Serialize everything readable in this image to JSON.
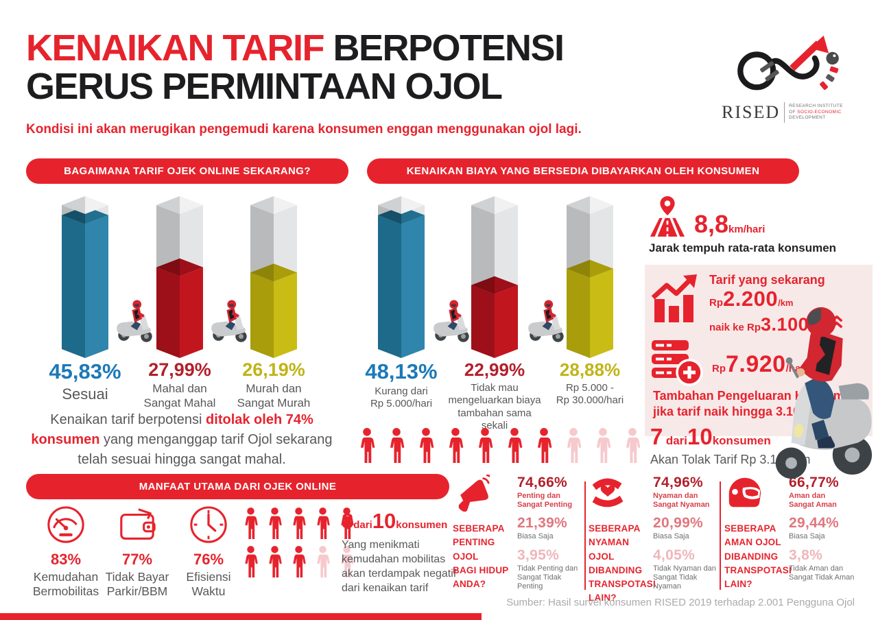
{
  "header": {
    "title_red": "KENAIKAN TARIF ",
    "title_black": "BERPOTENSI",
    "title_line2": "GERUS PERMINTAAN OJOL",
    "subtitle": "Kondisi ini akan merugikan pengemudi karena konsumen enggan menggunakan ojol lagi.",
    "logo": {
      "name": "RISED",
      "tagline_line1": "RESEARCH INSTITUTE",
      "tagline_line2_prefix": "OF ",
      "tagline_line2_red": "SOCIO-ECONOMIC",
      "tagline_line3": "DEVELOPMENT"
    }
  },
  "colors": {
    "accent_red": "#e6232d",
    "dark_red": "#b2202b",
    "blue": "#1b79b8",
    "yellow": "#c0b418",
    "text_gray": "#58585a",
    "light_pink": "#f6c9cd",
    "panel_pink": "#f8e9e9"
  },
  "chart_data": [
    {
      "id": "current-tariff-opinion",
      "type": "bar",
      "title": "BAGAIMANA TARIF OJEK ONLINE SEKARANG?",
      "unit": "%",
      "series": [
        {
          "value": 45.83,
          "value_label": "45,83%",
          "label_lines": [
            "Sesuai"
          ],
          "color": "#1b79b8",
          "color_name": "blue"
        },
        {
          "value": 27.99,
          "value_label": "27,99%",
          "label_lines": [
            "Mahal dan",
            "Sangat Mahal"
          ],
          "color": "#b2202b",
          "color_name": "red"
        },
        {
          "value": 26.19,
          "value_label": "26,19%",
          "label_lines": [
            "Murah dan",
            "Sangat Murah"
          ],
          "color": "#c0b418",
          "color_name": "yellow"
        }
      ]
    },
    {
      "id": "willingness-to-pay",
      "type": "bar",
      "title": "KENAIKAN BIAYA YANG BERSEDIA DIBAYARKAN OLEH KONSUMEN",
      "unit": "%",
      "series": [
        {
          "value": 48.13,
          "value_label": "48,13%",
          "label_lines": [
            "Kurang dari",
            "Rp 5.000/hari"
          ],
          "color": "#1b79b8",
          "color_name": "blue"
        },
        {
          "value": 22.99,
          "value_label": "22,99%",
          "label_lines": [
            "Tidak mau",
            "mengeluarkan biaya",
            "tambahan sama sekali"
          ],
          "color": "#b2202b",
          "color_name": "red"
        },
        {
          "value": 28.88,
          "value_label": "28,88%",
          "label_lines": [
            "Rp 5.000 -",
            "Rp 30.000/hari"
          ],
          "color": "#c0b418",
          "color_name": "yellow"
        }
      ]
    }
  ],
  "rejection_note": {
    "prefix": "Kenaikan tarif berpotensi ",
    "highlight": "ditolak oleh 74% konsumen",
    "suffix": " yang menganggap tarif Ojol sekarang telah sesuai hingga sangat mahal."
  },
  "stats_panel": {
    "distance": {
      "value": "8,8",
      "unit": "km/hari",
      "caption": "Jarak tempuh rata-rata konsumen"
    },
    "tariff": {
      "heading": "Tarif yang sekarang",
      "current_prefix": "Rp",
      "current_value": "2.200",
      "current_unit": "/km",
      "raise_prefix": "naik ke Rp",
      "raise_value": "3.100",
      "raise_unit": "/km"
    },
    "extra_spend": {
      "prefix": "Rp",
      "value": "7.920",
      "unit": "/hari",
      "caption_lines": [
        "Tambahan Pengeluaran Konsumen",
        "jika tarif naik hingga 3.100/ km"
      ]
    },
    "rejection": {
      "big1": "7",
      "word1": "dari",
      "big2": "10",
      "word2": "konsumen",
      "caption": "Akan Tolak Tarif Rp 3.100/km",
      "icons": {
        "total": 10,
        "active": 7
      }
    }
  },
  "benefits": {
    "title": "MANFAAT UTAMA DARI OJEK ONLINE",
    "items": [
      {
        "icon": "speedometer",
        "value": "83%",
        "label_lines": [
          "Kemudahan",
          "Bermobilitas"
        ]
      },
      {
        "icon": "wallet",
        "value": "77%",
        "label_lines": [
          "Tidak Bayar",
          "Parkir/BBM"
        ]
      },
      {
        "icon": "clock",
        "value": "76%",
        "label_lines": [
          "Efisiensi",
          "Waktu"
        ]
      }
    ],
    "impact": {
      "big1": "8",
      "word1": "dari",
      "big2": "10",
      "word2": "konsumen",
      "desc_lines": [
        "Yang menikmati",
        "kemudahan mobilitas",
        "akan terdampak negatif",
        "dari kenaikan tarif"
      ],
      "icons": {
        "total": 10,
        "active": 8
      }
    }
  },
  "surveys": [
    {
      "icon": "megaphone",
      "question_lines": [
        "SEBERAPA",
        "PENTING OJOL",
        "BAGI HIDUP",
        "ANDA?"
      ],
      "stats": [
        {
          "value": "74,66%",
          "label_lines": [
            "Penting dan",
            "Sangat Penting"
          ],
          "tone": "dark"
        },
        {
          "value": "21,39%",
          "label_lines": [
            "Biasa Saja"
          ],
          "tone": "mid"
        },
        {
          "value": "3,95%",
          "label_lines": [
            "Tidak Penting dan",
            "Sangat Tidak Penting"
          ],
          "tone": "light"
        }
      ]
    },
    {
      "icon": "care-hands",
      "question_lines": [
        "SEBERAPA",
        "NYAMAN OJOL",
        "DIBANDING",
        "TRANSPOTASI",
        "LAIN?"
      ],
      "stats": [
        {
          "value": "74,96%",
          "label_lines": [
            "Nyaman dan",
            "Sangat Nyaman"
          ],
          "tone": "dark"
        },
        {
          "value": "20,99%",
          "label_lines": [
            "Biasa Saja"
          ],
          "tone": "mid"
        },
        {
          "value": "4,05%",
          "label_lines": [
            "Tidak Nyaman dan",
            "Sangat Tidak Nyaman"
          ],
          "tone": "light"
        }
      ]
    },
    {
      "icon": "helmet",
      "question_lines": [
        "SEBERAPA",
        "AMAN OJOL",
        "DIBANDING",
        "TRANSPOTASI",
        "LAIN?"
      ],
      "stats": [
        {
          "value": "66,77%",
          "label_lines": [
            "Aman dan",
            "Sangat Aman"
          ],
          "tone": "dark"
        },
        {
          "value": "29,44%",
          "label_lines": [
            "Biasa Saja"
          ],
          "tone": "mid"
        },
        {
          "value": "3,8%",
          "label_lines": [
            "Tidak Aman dan",
            "Sangat Tidak Aman"
          ],
          "tone": "light"
        }
      ]
    }
  ],
  "footer": {
    "source": "Sumber: Hasil survei konsumen RISED 2019 terhadap 2.001 Pengguna Ojol"
  }
}
